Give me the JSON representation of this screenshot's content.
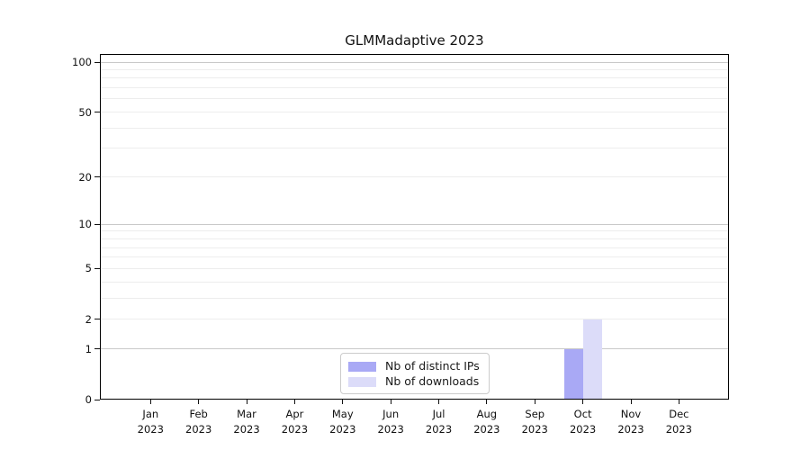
{
  "chart_data": {
    "type": "bar",
    "title": "GLMMadaptive 2023",
    "categories": [
      "Jan",
      "Feb",
      "Mar",
      "Apr",
      "May",
      "Jun",
      "Jul",
      "Aug",
      "Sep",
      "Oct",
      "Nov",
      "Dec"
    ],
    "year": "2023",
    "series": [
      {
        "name": "Nb of distinct IPs",
        "color": "#a9a9f5",
        "values": [
          0,
          0,
          0,
          0,
          0,
          0,
          0,
          0,
          0,
          1,
          0,
          0
        ]
      },
      {
        "name": "Nb of downloads",
        "color": "#dcdcf9",
        "values": [
          0,
          0,
          0,
          0,
          0,
          0,
          0,
          0,
          0,
          2,
          0,
          0
        ]
      }
    ],
    "y_axis": {
      "scale": "log1p",
      "tick_values": [
        0,
        1,
        2,
        5,
        10,
        20,
        50,
        100
      ],
      "major_grid_values": [
        1,
        10,
        100
      ],
      "minor_grid_values": [
        2,
        3,
        4,
        5,
        6,
        7,
        8,
        9,
        20,
        30,
        40,
        50,
        60,
        70,
        80,
        90
      ],
      "ylim": [
        0,
        112
      ]
    },
    "grid": "horizontal",
    "legend_position": "lower-center",
    "colors": {
      "major_grid": "#c9c9c9",
      "minor_grid": "#ededed",
      "spine": "#000000",
      "text": "#111111"
    }
  }
}
